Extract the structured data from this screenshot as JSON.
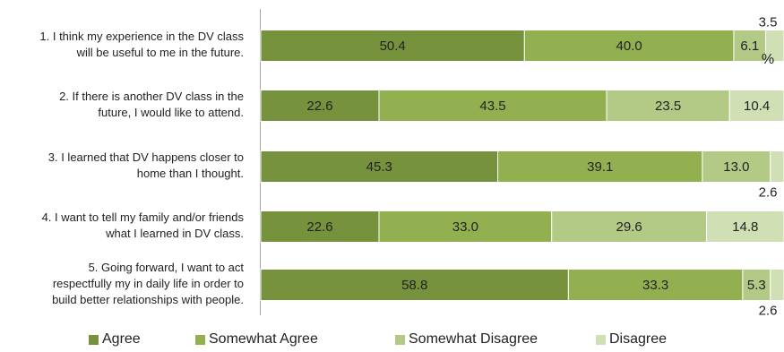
{
  "chart_data": {
    "type": "bar",
    "orientation": "horizontal",
    "stacked": true,
    "percent_label": "%",
    "categories": [
      "1. I think my experience in the DV class\nwill be useful to me in the future.",
      "2. If there is another DV class in the\nfuture, I would like to attend.",
      "3. I learned that DV happens closer to\nhome than I thought.",
      "4. I want to tell my family and/or friends\nwhat I learned in DV class.",
      "5. Going forward, I want to act\nrespectfully my in daily life in order to\nbuild better relationships with people."
    ],
    "series": [
      {
        "name": "Agree",
        "color": "#76923c",
        "values": [
          50.4,
          22.6,
          45.3,
          22.6,
          58.8
        ]
      },
      {
        "name": "Somewhat Agree",
        "color": "#92b050",
        "values": [
          40.0,
          43.5,
          39.1,
          33.0,
          33.3
        ]
      },
      {
        "name": "Somewhat Disagree",
        "color": "#b3c986",
        "values": [
          6.1,
          23.5,
          13.0,
          29.6,
          5.3
        ]
      },
      {
        "name": "Disagree",
        "color": "#d1dfb4",
        "values": [
          3.5,
          10.4,
          2.6,
          14.8,
          2.6
        ]
      }
    ],
    "xlim": [
      0,
      100
    ],
    "legend_position": "bottom"
  }
}
